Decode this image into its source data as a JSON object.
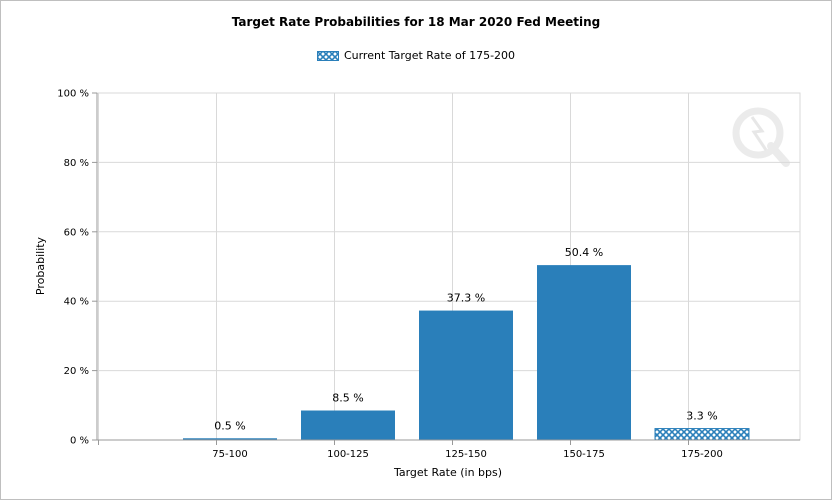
{
  "chart_data": {
    "type": "bar",
    "title": "Target Rate Probabilities for 18 Mar 2020 Fed Meeting",
    "xlabel": "Target Rate (in bps)",
    "ylabel": "Probability",
    "categories": [
      "75-100",
      "100-125",
      "125-150",
      "150-175",
      "175-200"
    ],
    "values": [
      0.5,
      8.5,
      37.3,
      50.4,
      3.3
    ],
    "value_labels": [
      "0.5 %",
      "8.5 %",
      "37.3 %",
      "50.4 %",
      "3.3 %"
    ],
    "yticks": [
      "0 %",
      "20 %",
      "40 %",
      "60 %",
      "80 %",
      "100 %"
    ],
    "ylim": [
      0,
      100
    ],
    "grid": true,
    "legend": {
      "position": "top-center",
      "entries": [
        "Current Target Rate of 175-200"
      ]
    },
    "highlighted_category": "175-200",
    "colors": {
      "bar": "#2a7fba",
      "highlight_pattern": "#2a7fba",
      "grid": "#d9d9d9",
      "axis": "#999999"
    }
  }
}
